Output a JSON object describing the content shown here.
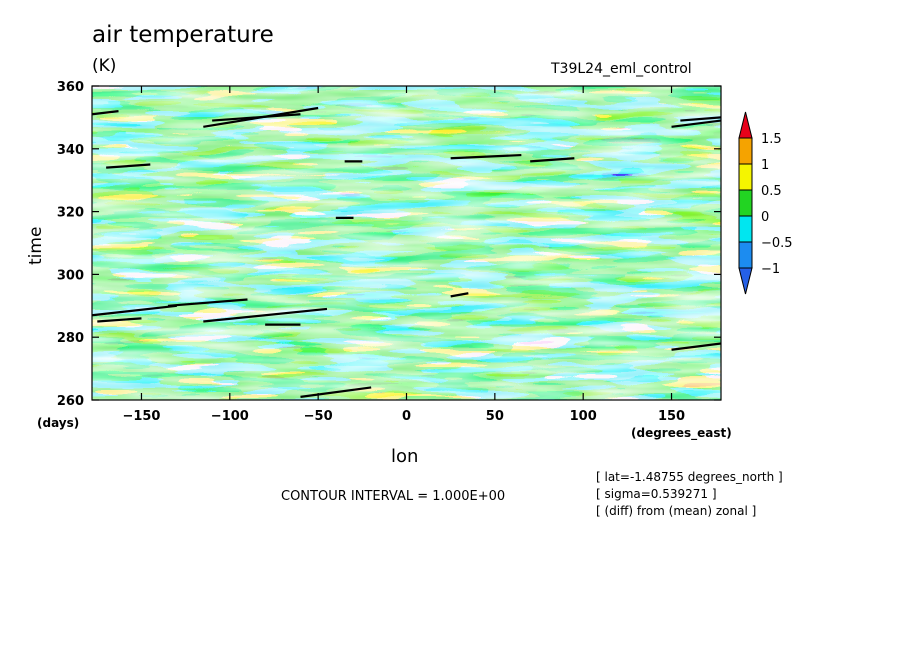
{
  "title": "air temperature",
  "units": "(K)",
  "experiment": "T39L24_eml_control",
  "x_unit": "(degrees_east)",
  "y_unit": "(days)",
  "contour_interval": "CONTOUR INTERVAL = 1.000E+00",
  "info": [
    "[ lat=-1.48755 degrees_north ]",
    "[ sigma=0.539271 ]",
    "[ (diff) from (mean) zonal ]"
  ],
  "chart_data": {
    "type": "heatmap",
    "xlabel": "lon",
    "ylabel": "time",
    "xlim": [
      -178,
      178
    ],
    "ylim": [
      260,
      360
    ],
    "xticks": [
      -150,
      -100,
      -50,
      0,
      50,
      100,
      150
    ],
    "yticks": [
      260,
      280,
      300,
      320,
      340,
      360
    ],
    "colorbar": {
      "levels": [
        "1.5",
        "1",
        "0.5",
        "0",
        "-0.5",
        "-1"
      ],
      "colors": [
        "#e8001a",
        "#f5a300",
        "#f5f500",
        "#22d422",
        "#00e6f0",
        "#1c8cf0",
        "#2560e6"
      ]
    }
  }
}
